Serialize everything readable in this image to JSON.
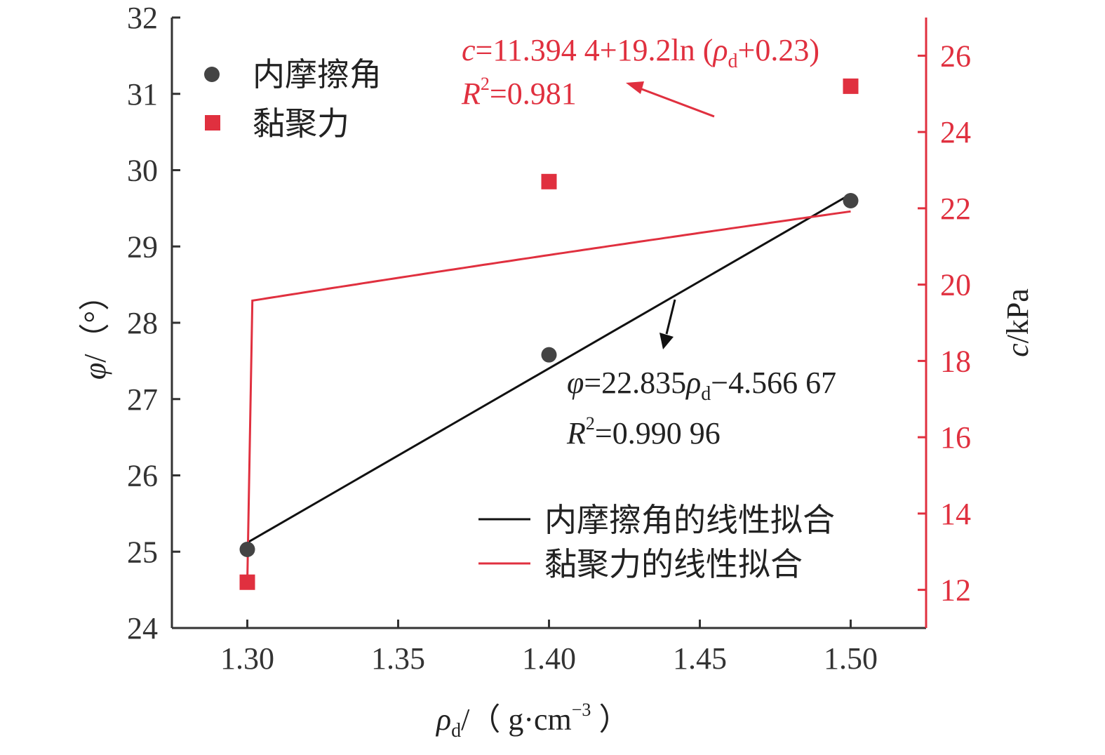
{
  "chart_data": {
    "type": "scatter",
    "x": [
      1.3,
      1.4,
      1.5
    ],
    "x_ticks": [
      "1.30",
      "1.35",
      "1.40",
      "1.45",
      "1.50"
    ],
    "xlim": [
      1.275,
      1.525
    ],
    "y_left_ticks": [
      "24",
      "25",
      "26",
      "27",
      "28",
      "29",
      "30",
      "31",
      "32"
    ],
    "y_left_lim": [
      24,
      32
    ],
    "y_right_ticks": [
      "12",
      "14",
      "16",
      "18",
      "20",
      "22",
      "24",
      "26"
    ],
    "y_right_lim": [
      11,
      27
    ],
    "xlabel": {
      "base": "ρ",
      "sub": "d",
      "unit": "/（ g·cm",
      "exp": "−3",
      "close": " ）"
    },
    "ylabel_left": {
      "sym": "φ",
      "unit": "/（°）"
    },
    "ylabel_right": {
      "sym": "c",
      "unit": "/kPa"
    },
    "series": [
      {
        "name": "内摩擦角",
        "axis": "left",
        "marker": "circle",
        "color": "#444444",
        "values": [
          25.03,
          27.58,
          29.6
        ]
      },
      {
        "name": "黏聚力",
        "axis": "right",
        "marker": "square",
        "color": "#e0303f",
        "values": [
          12.2,
          22.7,
          25.2
        ]
      }
    ],
    "fits": [
      {
        "name": "内摩擦角的线性拟合",
        "axis": "left",
        "color": "#111111",
        "kind": "linear",
        "slope": 22.835,
        "intercept": -4.56667,
        "x_range": [
          1.3,
          1.5
        ]
      },
      {
        "name": "黏聚力的线性拟合",
        "axis": "right",
        "color": "#e0303f",
        "kind": "log",
        "a": 11.3944,
        "b": 19.2,
        "shift": 0.23,
        "x_range": [
          1.3,
          1.5
        ]
      }
    ],
    "annotations": {
      "black": {
        "line1": {
          "sym": "φ",
          "p1": "=22.835",
          "rho": "ρ",
          "sub": "d",
          "p2": "−4.566 67"
        },
        "line2": {
          "sym": "R",
          "exp": "2",
          "rest": "=0.990 96"
        }
      },
      "red": {
        "line1": {
          "sym": "c",
          "p1": "=11.394 4+19.2ln (",
          "rho": "ρ",
          "sub": "d",
          "p2": "+0.23)"
        },
        "line2": {
          "sym": "R",
          "exp": "2",
          "rest": "=0.981"
        }
      }
    },
    "colors": {
      "axis_right": "#e0303f",
      "axis_left": "#333333"
    }
  }
}
